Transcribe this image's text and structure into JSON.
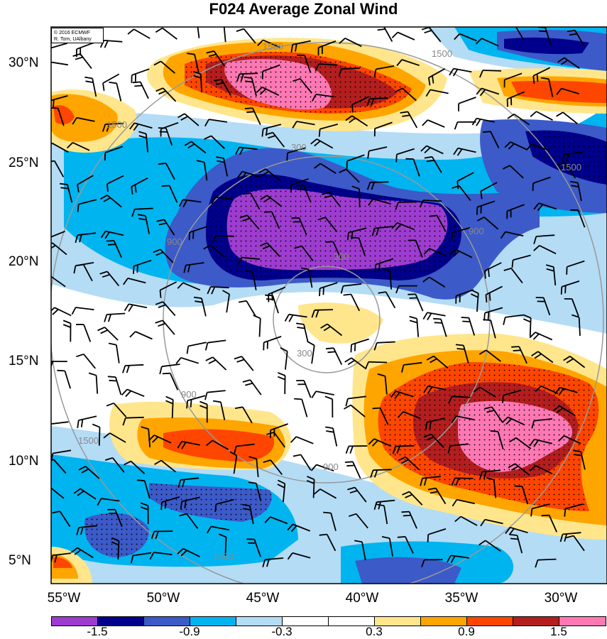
{
  "title": "F024 Average Zonal Wind",
  "credit": {
    "line1": "© 2016 ECMWF",
    "line2": "R. Torn, UAlbany"
  },
  "lat_labels": [
    "30°N",
    "25°N",
    "20°N",
    "15°N",
    "10°N",
    "5°N"
  ],
  "lon_labels": [
    "55°W",
    "50°W",
    "45°W",
    "40°W",
    "35°W",
    "30°W"
  ],
  "contour_labels": [
    "1500",
    "1500",
    "1500",
    "300",
    "300",
    "300",
    "900",
    "900",
    "900",
    "900",
    "1500",
    "1500",
    "1500"
  ],
  "colorbar": {
    "colors": [
      "#9e3cd0",
      "#00008c",
      "#3c5ac8",
      "#00b4f0",
      "#b4dcf5",
      "#ffffff",
      "#ffffff",
      "#ffe68c",
      "#ffa500",
      "#ff4600",
      "#b41e1e",
      "#ff78b4"
    ],
    "labels": [
      "-1.5",
      "-0.9",
      "-0.3",
      "0.3",
      "0.9",
      "1.5"
    ]
  }
}
